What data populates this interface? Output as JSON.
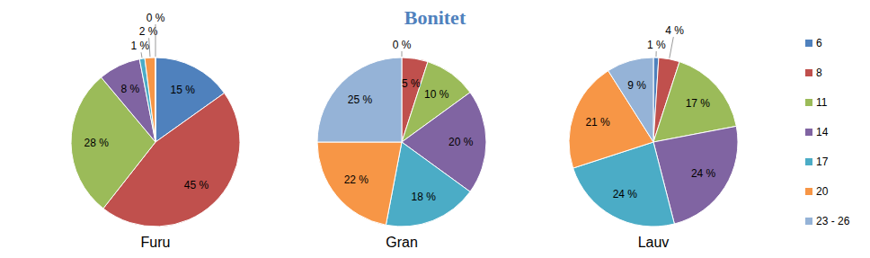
{
  "chart_data": {
    "type": "pie",
    "title": "Bonitet",
    "categories": [
      "6",
      "8",
      "11",
      "14",
      "17",
      "20",
      "23 - 26"
    ],
    "colors": [
      "#4f81bd",
      "#c0504d",
      "#9bbb59",
      "#8064a2",
      "#4bacc6",
      "#f79646",
      "#95b3d7"
    ],
    "series": [
      {
        "name": "Furu",
        "values": [
          15,
          45,
          28,
          8,
          1,
          2,
          0
        ],
        "value_labels": [
          "15 %",
          "45 %",
          "28 %",
          "8 %",
          "1 %",
          "2 %",
          "0 %"
        ]
      },
      {
        "name": "Gran",
        "values": [
          0,
          5,
          10,
          20,
          18,
          22,
          25
        ],
        "value_labels": [
          "0 %",
          "5 %",
          "10 %",
          "20 %",
          "18 %",
          "22 %",
          "25 %"
        ]
      },
      {
        "name": "Lauv",
        "values": [
          1,
          4,
          17,
          24,
          24,
          21,
          9
        ],
        "value_labels": [
          "1 %",
          "4 %",
          "17 %",
          "24 %",
          "24 %",
          "21 %",
          "9 %"
        ]
      }
    ],
    "data_labels": true,
    "legend": "right"
  }
}
